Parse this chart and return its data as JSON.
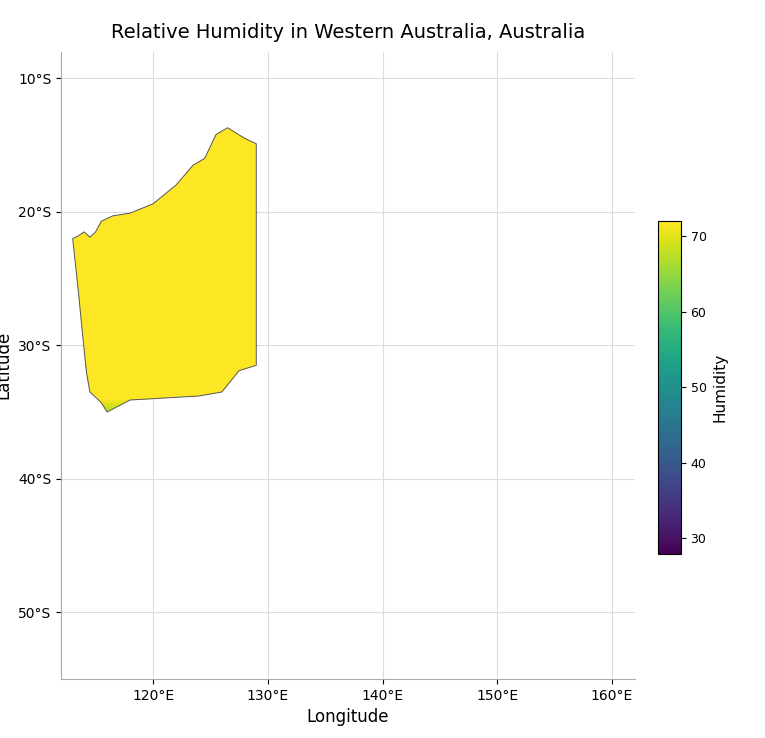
{
  "title": "Relative Humidity in Western Australia, Australia",
  "xlabel": "Longitude",
  "ylabel": "Latitude",
  "xlim": [
    112,
    162
  ],
  "ylim": [
    -55,
    -8
  ],
  "xticks": [
    120,
    130,
    140,
    150,
    160
  ],
  "yticks": [
    -10,
    -20,
    -30,
    -40,
    -50
  ],
  "xtick_labels": [
    "120°E",
    "130°E",
    "140°E",
    "150°E",
    "160°E"
  ],
  "ytick_labels": [
    "10°S",
    "20°S",
    "30°S",
    "40°S",
    "50°S"
  ],
  "colorbar_label": "Humidity",
  "colorbar_ticks": [
    30,
    40,
    50,
    60,
    70
  ],
  "vmin": 28,
  "vmax": 72,
  "colormap": "viridis",
  "background_color": "#ffffff",
  "grid_color": "#dddddd",
  "map_face_color": "#ffffff",
  "map_edge_color": "#555555",
  "map_linewidth": 0.7,
  "fig_bg_color": "#ffffff"
}
